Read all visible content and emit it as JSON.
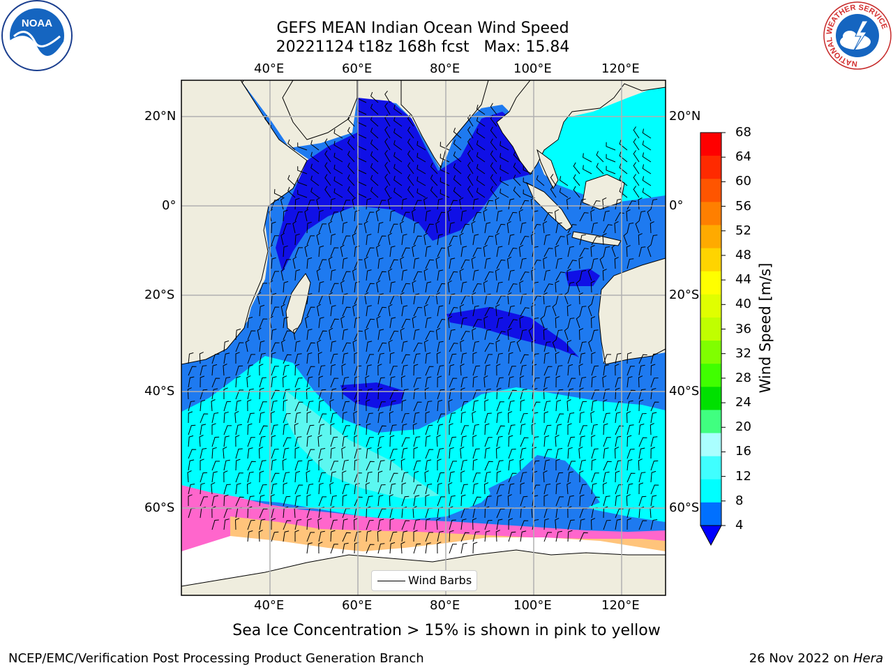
{
  "header": {
    "title_line1": "GEFS MEAN Indian Ocean Wind Speed",
    "title_line2": "20221124 t18z 168h fcst   Max: 15.84"
  },
  "logos": {
    "left": "NOAA",
    "right_ring_text": "NATIONAL WEATHER SERVICE"
  },
  "map": {
    "lon_labels": [
      "40°E",
      "60°E",
      "80°E",
      "100°E",
      "120°E"
    ],
    "lat_labels": [
      "20°N",
      "0°",
      "20°S",
      "40°S",
      "60°S"
    ],
    "legend_label": "Wind Barbs",
    "colors": {
      "land": "#efedde",
      "ocean_4_8": "#1e7af0",
      "ocean_8_12": "#00ffff",
      "ocean_12_16": "#3dfbfb",
      "ocean_calm": "#1010e6",
      "ocean_mid": "#0050e0",
      "sea_ice": "#ff66cc"
    }
  },
  "colorbar": {
    "title": "Wind Speed [m/s]",
    "ticks": [
      "68",
      "64",
      "60",
      "56",
      "52",
      "48",
      "44",
      "40",
      "36",
      "32",
      "28",
      "24",
      "20",
      "16",
      "12",
      "8",
      "4"
    ],
    "colors": [
      "#ff0000",
      "#ff2a00",
      "#ff5500",
      "#ff7f00",
      "#ffaa00",
      "#ffd400",
      "#ffff00",
      "#e0ff00",
      "#c0ff00",
      "#80ff00",
      "#40ff00",
      "#00e000",
      "#40ff80",
      "#aaffff",
      "#40ffff",
      "#00ffff",
      "#0070ff"
    ],
    "under_color": "#0000ff"
  },
  "note": "Sea Ice Concentration > 15% is shown in pink to yellow",
  "footer": {
    "left": "NCEP/EMC/Verification Post Processing Product Generation Branch",
    "right_prefix": "26 Nov 2022 on ",
    "right_host": "Hera"
  }
}
